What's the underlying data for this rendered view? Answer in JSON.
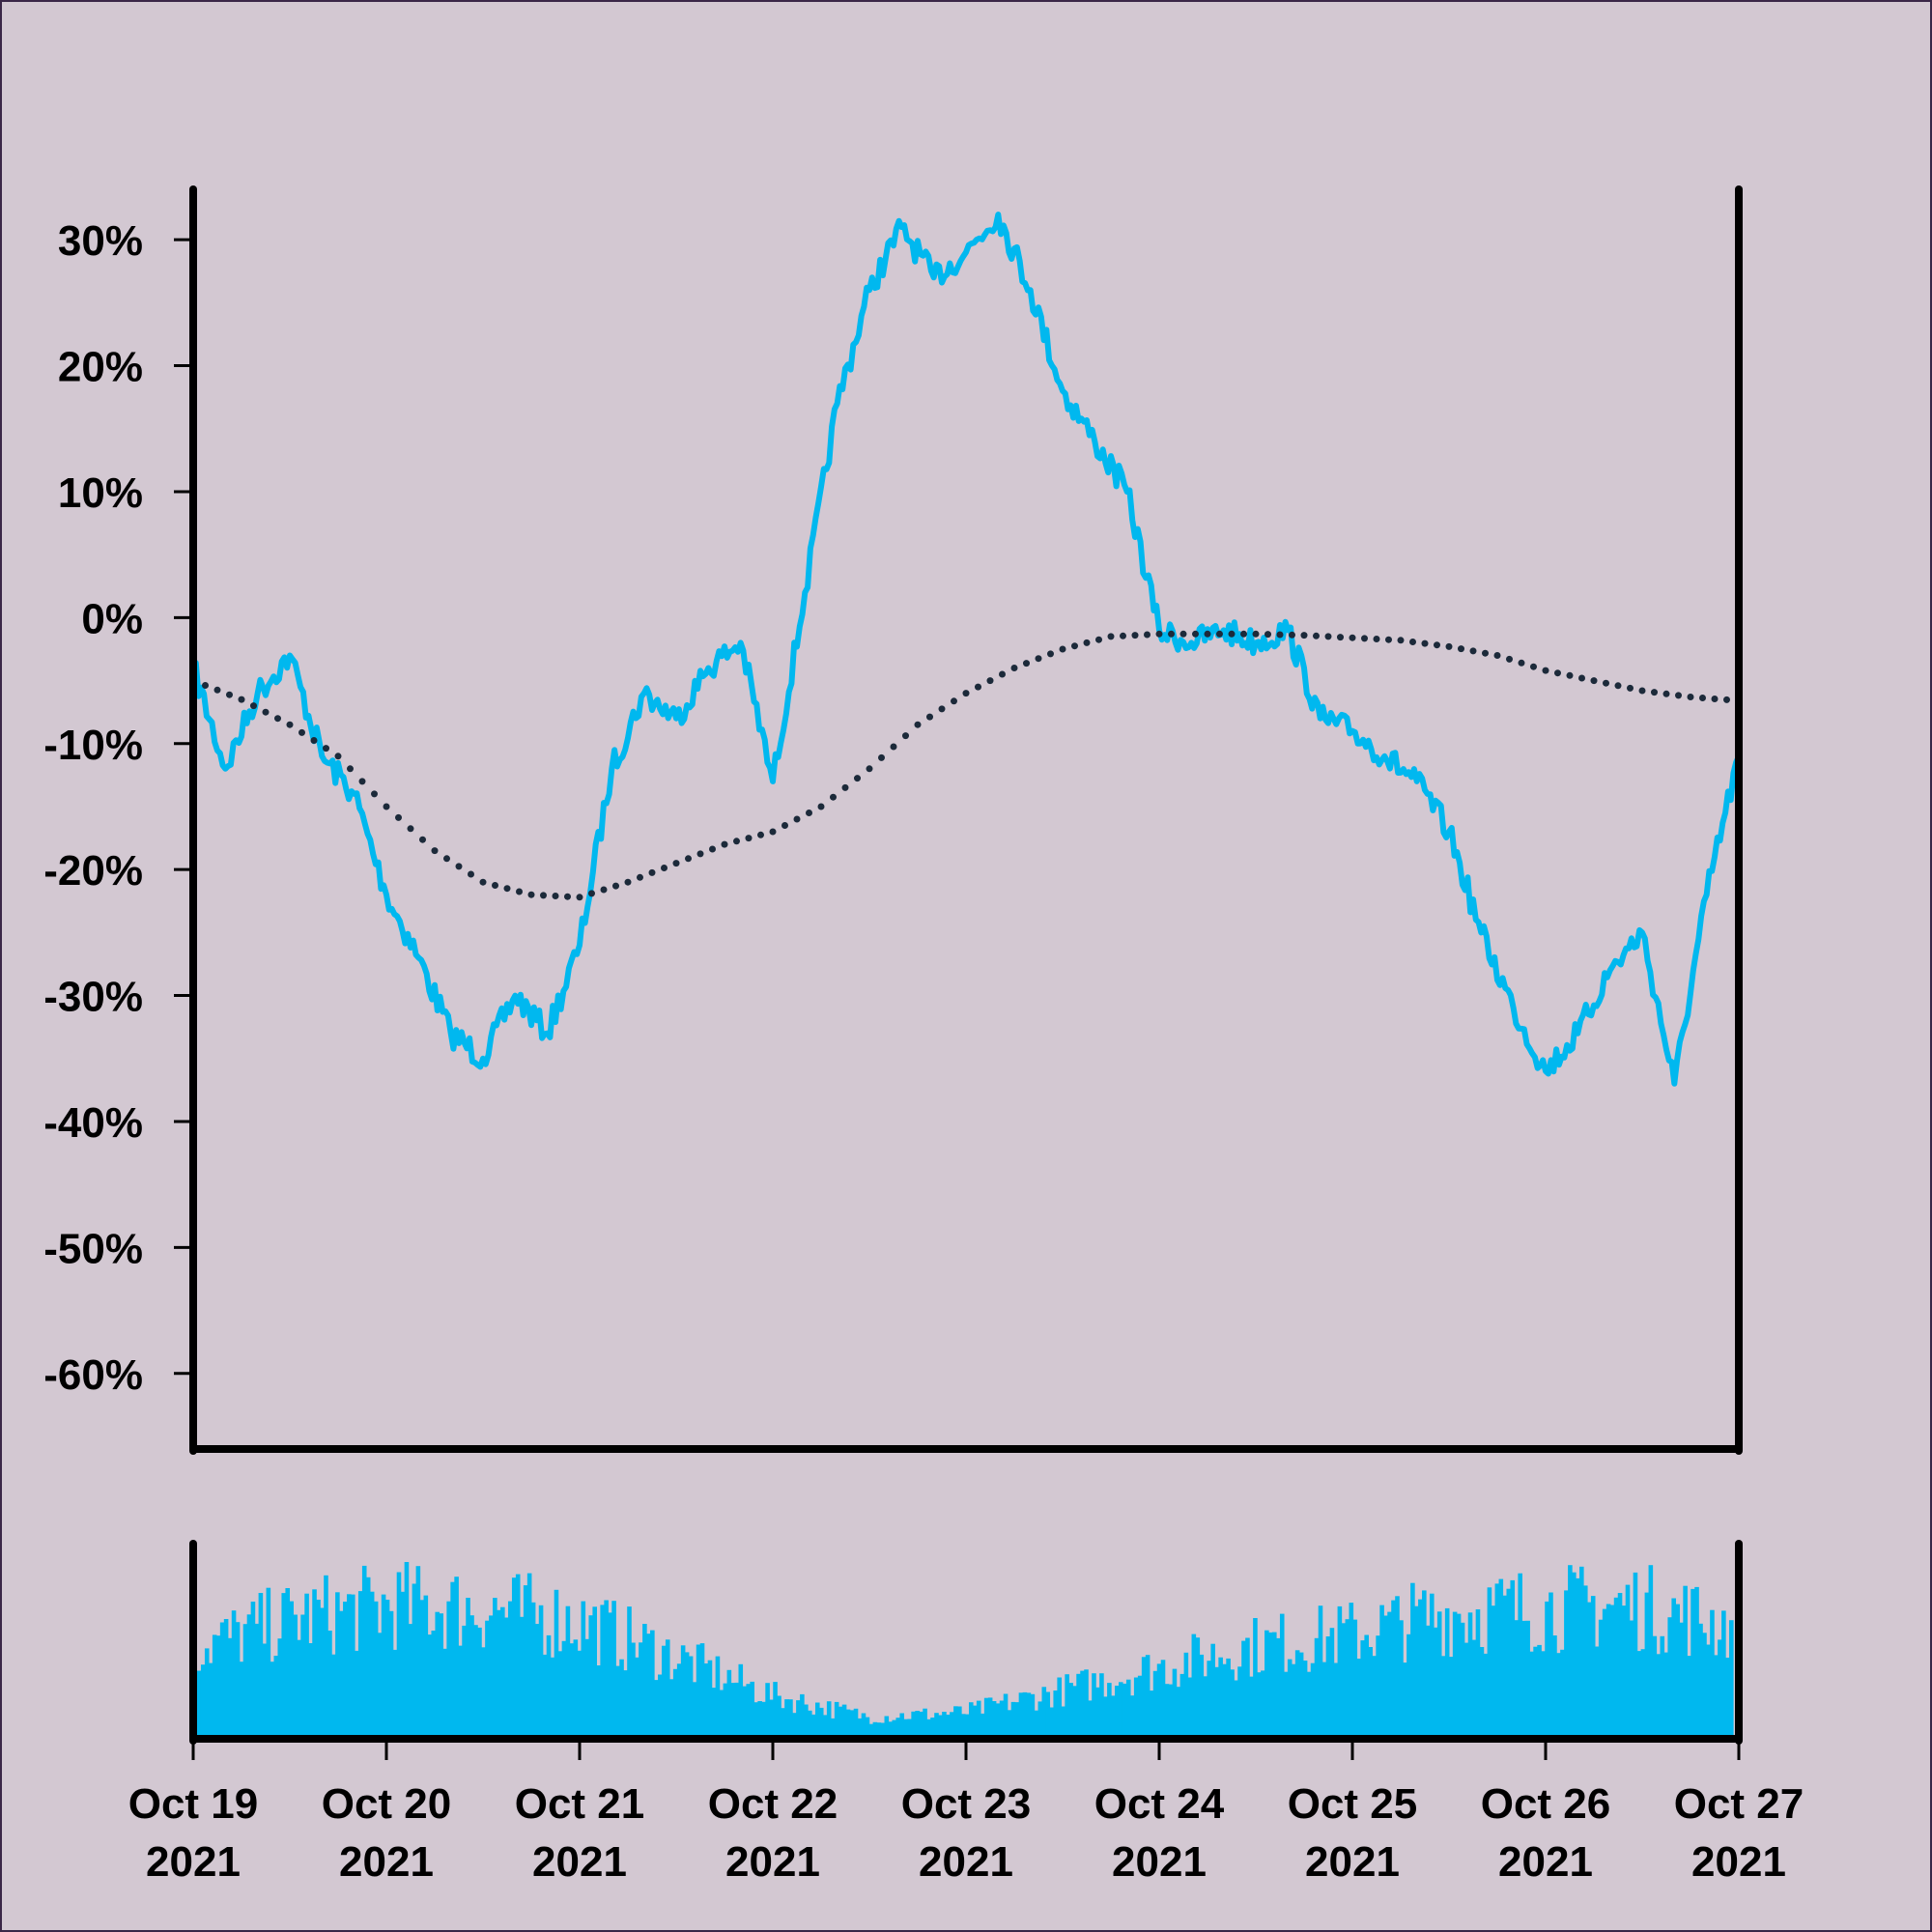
{
  "chart_data": [
    {
      "type": "line",
      "panel": "price",
      "y_unit": "%",
      "ylim": [
        -66,
        34
      ],
      "y_ticks": [
        30,
        20,
        10,
        0,
        -10,
        -20,
        -30,
        -40,
        -50,
        -60
      ],
      "y_tick_labels": [
        "30%",
        "20%",
        "10%",
        "0%",
        "-10%",
        "-20%",
        "-30%",
        "-40%",
        "-50%",
        "-60%"
      ],
      "x_range": [
        "2021-10-19",
        "2021-10-27"
      ],
      "grid": false,
      "legend": "none",
      "series": [
        {
          "style": "solid",
          "color": "#00b8ef",
          "x": [
            "2021-10-19 00:00",
            "2021-10-19 04:00",
            "2021-10-19 08:00",
            "2021-10-19 12:00",
            "2021-10-19 16:00",
            "2021-10-19 20:00",
            "2021-10-20 00:00",
            "2021-10-20 04:00",
            "2021-10-20 08:00",
            "2021-10-20 12:00",
            "2021-10-20 16:00",
            "2021-10-20 20:00",
            "2021-10-21 00:00",
            "2021-10-21 04:00",
            "2021-10-21 08:00",
            "2021-10-21 12:00",
            "2021-10-21 16:00",
            "2021-10-21 20:00",
            "2021-10-22 00:00",
            "2021-10-22 04:00",
            "2021-10-22 08:00",
            "2021-10-22 12:00",
            "2021-10-22 16:00",
            "2021-10-22 20:00",
            "2021-10-23 00:00",
            "2021-10-23 04:00",
            "2021-10-23 08:00",
            "2021-10-23 12:00",
            "2021-10-23 16:00",
            "2021-10-23 20:00",
            "2021-10-24 00:00",
            "2021-10-24 04:00",
            "2021-10-24 08:00",
            "2021-10-24 12:00",
            "2021-10-24 16:00",
            "2021-10-24 20:00",
            "2021-10-25 00:00",
            "2021-10-25 04:00",
            "2021-10-25 08:00",
            "2021-10-25 12:00",
            "2021-10-25 16:00",
            "2021-10-25 20:00",
            "2021-10-26 00:00",
            "2021-10-26 04:00",
            "2021-10-26 08:00",
            "2021-10-26 12:00",
            "2021-10-26 16:00",
            "2021-10-26 20:00",
            "2021-10-27 00:00"
          ],
          "y": [
            -4,
            -12,
            -6,
            -3,
            -11,
            -14,
            -22,
            -27,
            -33,
            -35,
            -30,
            -33,
            -26,
            -12,
            -6,
            -8,
            -4,
            -2,
            -13,
            2,
            17,
            26,
            31,
            27,
            29,
            32,
            26,
            18,
            14,
            10,
            -1,
            -2,
            -1,
            -2,
            -1,
            -8,
            -9,
            -11,
            -13,
            -17,
            -25,
            -31,
            -36,
            -33,
            -28,
            -25,
            -37,
            -22,
            -11
          ]
        },
        {
          "style": "dotted",
          "color": "#1c2a3a",
          "x": [
            "2021-10-19 00:00",
            "2021-10-19 06:00",
            "2021-10-19 12:00",
            "2021-10-19 18:00",
            "2021-10-20 00:00",
            "2021-10-20 06:00",
            "2021-10-20 12:00",
            "2021-10-20 18:00",
            "2021-10-21 00:00",
            "2021-10-21 06:00",
            "2021-10-21 12:00",
            "2021-10-21 18:00",
            "2021-10-22 00:00",
            "2021-10-22 06:00",
            "2021-10-22 12:00",
            "2021-10-22 18:00",
            "2021-10-23 00:00",
            "2021-10-23 06:00",
            "2021-10-23 12:00",
            "2021-10-23 18:00",
            "2021-10-24 00:00",
            "2021-10-24 06:00",
            "2021-10-24 12:00",
            "2021-10-24 18:00",
            "2021-10-25 00:00",
            "2021-10-25 06:00",
            "2021-10-25 12:00",
            "2021-10-25 18:00",
            "2021-10-26 00:00",
            "2021-10-26 06:00",
            "2021-10-26 12:00",
            "2021-10-26 18:00",
            "2021-10-27 00:00"
          ],
          "y": [
            -5,
            -6.5,
            -8.5,
            -11,
            -15,
            -18.5,
            -21,
            -22,
            -22.2,
            -21,
            -19.5,
            -18,
            -17,
            -15,
            -12,
            -8.5,
            -6,
            -4,
            -2.5,
            -1.5,
            -1.3,
            -1.3,
            -1.3,
            -1.4,
            -1.6,
            -1.8,
            -2.3,
            -3,
            -4.2,
            -5,
            -5.8,
            -6.3,
            -6.6
          ]
        }
      ]
    },
    {
      "type": "bar",
      "panel": "volume",
      "color": "#00b8ef",
      "x_range": [
        "2021-10-19",
        "2021-10-27"
      ],
      "x_ticks": [
        "2021-10-19",
        "2021-10-20",
        "2021-10-21",
        "2021-10-22",
        "2021-10-23",
        "2021-10-24",
        "2021-10-25",
        "2021-10-26",
        "2021-10-27"
      ],
      "x_tick_labels": [
        [
          "Oct 19",
          "2021"
        ],
        [
          "Oct 20",
          "2021"
        ],
        [
          "Oct 21",
          "2021"
        ],
        [
          "Oct 22",
          "2021"
        ],
        [
          "Oct 23",
          "2021"
        ],
        [
          "Oct 24",
          "2021"
        ],
        [
          "Oct 25",
          "2021"
        ],
        [
          "Oct 26",
          "2021"
        ],
        [
          "Oct 27",
          "2021"
        ]
      ],
      "relative_volume_envelope": [
        0.55,
        0.72,
        0.8,
        0.78,
        0.7,
        0.48,
        0.25,
        0.12,
        0.15,
        0.28,
        0.42,
        0.55,
        0.62,
        0.75,
        0.78,
        0.8,
        0.68
      ]
    }
  ]
}
